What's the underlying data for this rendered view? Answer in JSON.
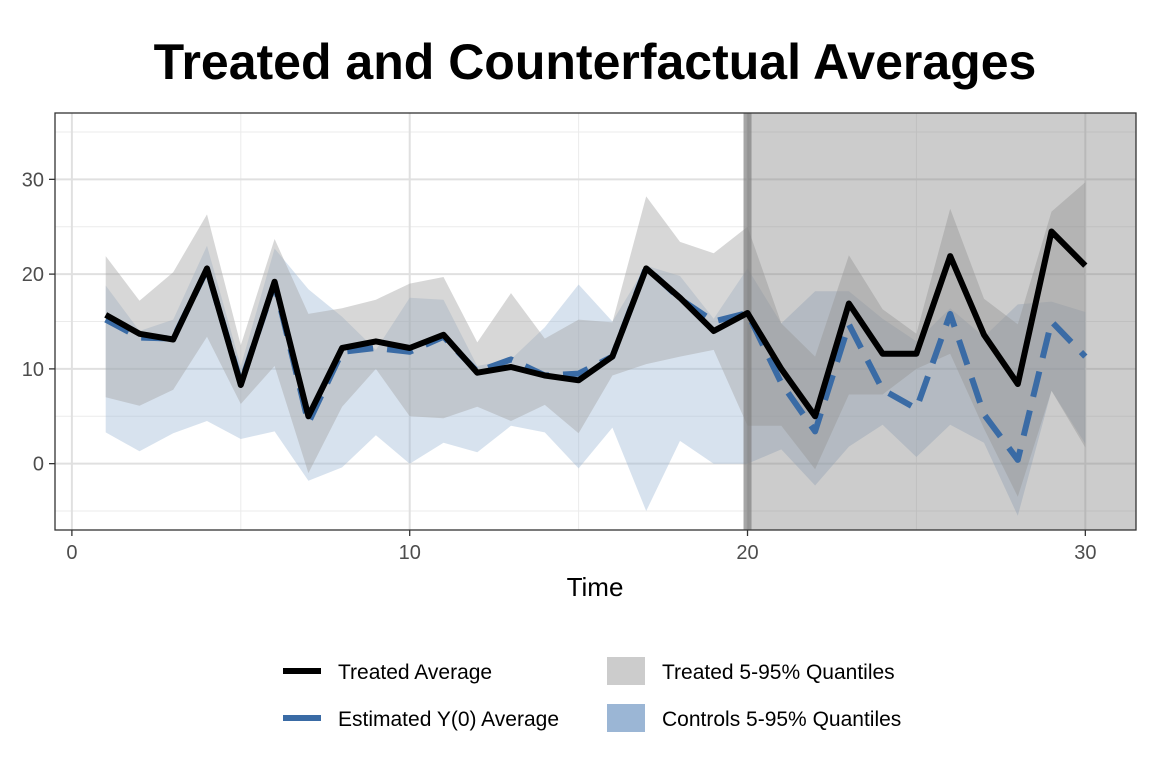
{
  "chart_data": {
    "type": "line",
    "title": "Treated and Counterfactual Averages",
    "xlabel": "Time",
    "ylabel": "",
    "xlim": [
      -0.5,
      31.5
    ],
    "ylim": [
      -7,
      37
    ],
    "x_ticks": [
      0,
      10,
      20,
      30
    ],
    "y_ticks": [
      0,
      10,
      20,
      30
    ],
    "x_tick_labels": [
      "0",
      "10",
      "20",
      "30"
    ],
    "y_tick_labels": [
      "0",
      "10",
      "20",
      "30"
    ],
    "grid": true,
    "treatment_start": 20,
    "treatment_period_color": "#7f7f7f",
    "x": [
      1,
      2,
      3,
      4,
      5,
      6,
      7,
      8,
      9,
      10,
      11,
      12,
      13,
      14,
      15,
      16,
      17,
      18,
      19,
      20,
      21,
      22,
      23,
      24,
      25,
      26,
      27,
      28,
      29,
      30
    ],
    "series": [
      {
        "name": "Treated Average",
        "color": "#000000",
        "style": "solid",
        "values": [
          15.7,
          13.7,
          13.1,
          20.6,
          8.3,
          19.2,
          5.0,
          12.2,
          12.9,
          12.2,
          13.6,
          9.6,
          10.2,
          9.3,
          8.8,
          11.3,
          20.6,
          17.5,
          14.0,
          15.9,
          10.0,
          5.0,
          16.9,
          11.6,
          11.6,
          21.9,
          13.6,
          8.4,
          24.5,
          20.9
        ]
      },
      {
        "name": "Estimated Y(0) Average",
        "color": "#3a6ba5",
        "style": "dashed",
        "values": [
          15.2,
          13.3,
          13.2,
          20.5,
          8.5,
          19.0,
          4.3,
          11.8,
          12.2,
          11.8,
          13.4,
          9.7,
          11.0,
          9.3,
          9.5,
          11.3,
          20.7,
          17.4,
          15.0,
          15.9,
          8.5,
          3.4,
          14.7,
          7.8,
          5.8,
          15.8,
          5.2,
          0.4,
          15.0,
          11.3
        ]
      }
    ],
    "bands": [
      {
        "name": "Treated 5-95% Quantiles",
        "color": "#a6a6a6",
        "opacity": 0.45,
        "lower": [
          7.0,
          6.1,
          7.8,
          13.4,
          6.3,
          10.3,
          -1.0,
          6.0,
          10.0,
          5.0,
          4.8,
          6.0,
          4.5,
          6.2,
          3.2,
          9.3,
          10.5,
          11.3,
          12.0,
          4.0,
          4.0,
          -0.6,
          7.3,
          7.3,
          10.0,
          11.6,
          3.7,
          -3.5,
          7.7,
          1.7
        ],
        "upper": [
          21.9,
          17.2,
          20.2,
          26.3,
          12.5,
          23.7,
          15.8,
          16.4,
          17.3,
          19.0,
          19.7,
          12.8,
          18.0,
          13.2,
          15.2,
          14.9,
          28.2,
          23.4,
          22.2,
          25.0,
          14.8,
          11.3,
          22.0,
          16.3,
          13.7,
          26.9,
          17.4,
          14.7,
          26.6,
          29.7
        ]
      },
      {
        "name": "Controls 5-95% Quantiles",
        "color": "#9bb6d5",
        "opacity": 0.4,
        "lower": [
          3.3,
          1.3,
          3.2,
          4.5,
          2.6,
          3.4,
          -1.8,
          -0.4,
          3.0,
          0.0,
          2.2,
          1.2,
          4.0,
          3.3,
          -0.5,
          3.8,
          -5.0,
          2.4,
          0.0,
          0.0,
          1.5,
          -2.3,
          1.8,
          4.1,
          0.7,
          4.1,
          2.2,
          -5.5,
          7.7,
          2.1
        ],
        "upper": [
          18.8,
          14.0,
          15.2,
          23.0,
          10.3,
          22.7,
          18.4,
          15.5,
          12.0,
          17.5,
          17.3,
          10.3,
          11.0,
          14.4,
          18.9,
          15.0,
          20.9,
          19.8,
          15.3,
          20.6,
          14.8,
          18.2,
          18.2,
          15.3,
          12.9,
          16.4,
          13.4,
          16.8,
          17.1,
          16.0
        ]
      }
    ],
    "legend": {
      "placement": "bottom",
      "entries": [
        {
          "label": "Treated Average",
          "kind": "line",
          "color": "#000000"
        },
        {
          "label": "Treated 5-95% Quantiles",
          "kind": "fill",
          "color": "#cccccc"
        },
        {
          "label": "Estimated Y(0) Average",
          "kind": "line",
          "color": "#3a6ba5"
        },
        {
          "label": "Controls 5-95% Quantiles",
          "kind": "fill",
          "color": "#9bb6d5"
        }
      ]
    }
  }
}
